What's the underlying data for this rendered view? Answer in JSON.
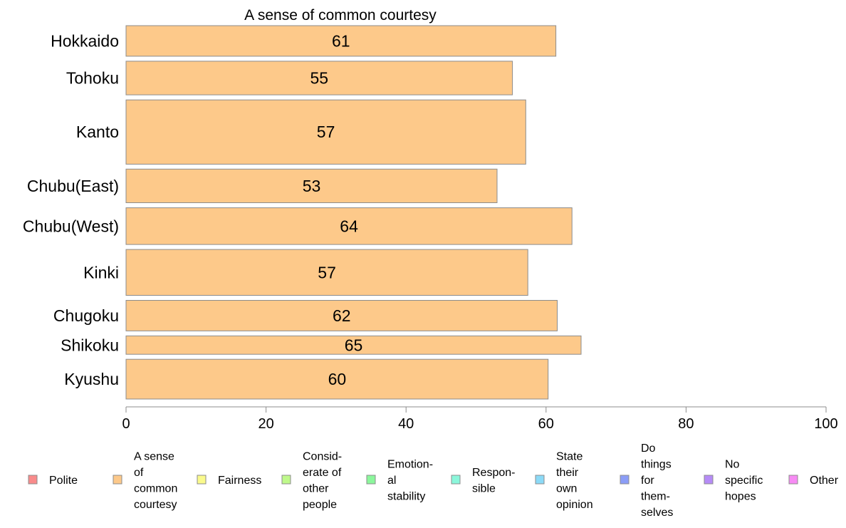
{
  "chart_data": {
    "type": "bar",
    "orientation": "horizontal",
    "title": "A sense of common courtesy",
    "categories": [
      "Hokkaido",
      "Tohoku",
      "Kanto",
      "Chubu(East)",
      "Chubu(West)",
      "Kinki",
      "Chugoku",
      "Shikoku",
      "Kyushu"
    ],
    "values": [
      61.4,
      55.2,
      57.1,
      53.0,
      63.7,
      57.4,
      61.6,
      65.0,
      60.3
    ],
    "data_labels": [
      "61",
      "55",
      "57",
      "53",
      "64",
      "57",
      "62",
      "65",
      "60"
    ],
    "bar_weights": [
      1.0,
      1.1,
      2.1,
      1.1,
      1.2,
      1.5,
      1.0,
      0.6,
      1.3
    ],
    "xlim": [
      0,
      100
    ],
    "xticks": [
      "0",
      "20",
      "40",
      "60",
      "80",
      "100"
    ],
    "xlabel": "",
    "ylabel": "",
    "bar_color": "#FDC98A",
    "bar_edge_color": "#8c8c8c",
    "legend": {
      "placement": "bottom",
      "items": [
        {
          "label_lines": [
            "Polite"
          ],
          "color": "#F98B8B"
        },
        {
          "label_lines": [
            "A sense",
            "of",
            "common",
            "courtesy"
          ],
          "color": "#FDC98A"
        },
        {
          "label_lines": [
            "Fairness"
          ],
          "color": "#FAFA8C"
        },
        {
          "label_lines": [
            "Consid-",
            "erate of",
            "other",
            "people"
          ],
          "color": "#BFF98B"
        },
        {
          "label_lines": [
            "Emotion-",
            "al",
            "stability"
          ],
          "color": "#8BF79C"
        },
        {
          "label_lines": [
            "Respon-",
            "sible"
          ],
          "color": "#8BF7DB"
        },
        {
          "label_lines": [
            "State",
            "their",
            "own",
            "opinion"
          ],
          "color": "#8BDAF7"
        },
        {
          "label_lines": [
            "Do",
            "things",
            "for",
            "them-",
            "selves"
          ],
          "color": "#8B9DF7"
        },
        {
          "label_lines": [
            "No",
            "specific",
            "hopes"
          ],
          "color": "#B68BF7"
        },
        {
          "label_lines": [
            "Other"
          ],
          "color": "#F78BF4"
        }
      ]
    }
  }
}
